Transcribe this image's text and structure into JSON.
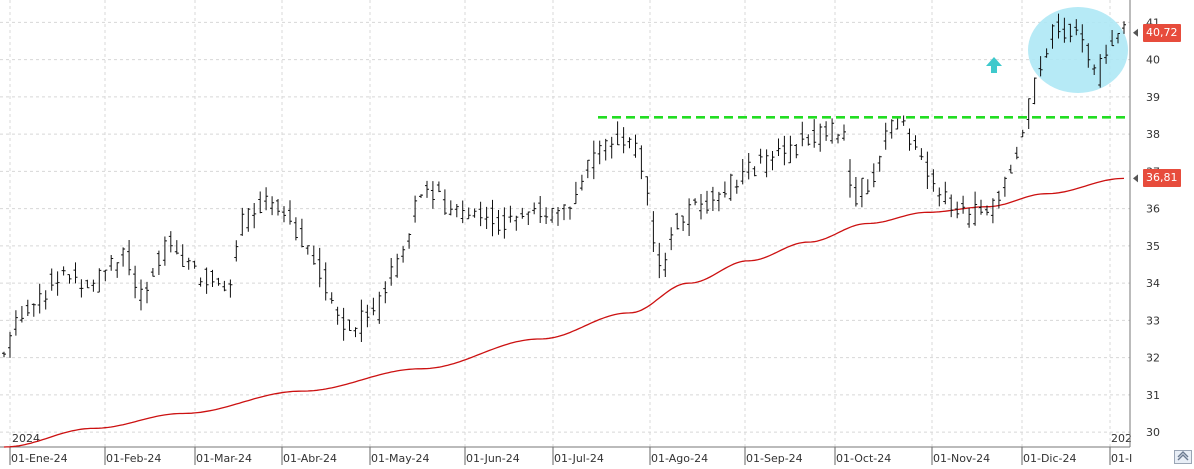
{
  "chart_data": {
    "type": "ohlc",
    "title": "",
    "xlabel": "",
    "ylabel": "",
    "ylim": [
      29.6,
      41.6
    ],
    "y_ticks": [
      30,
      31,
      32,
      33,
      34,
      35,
      36,
      37,
      38,
      39,
      40,
      41
    ],
    "y_axis_side": "right",
    "grid": true,
    "year_labels": [
      "2024",
      "202"
    ],
    "x_tick_labels": [
      "01-Ene-24",
      "01-Feb-24",
      "01-Mar-24",
      "01-Abr-24",
      "01-May-24",
      "01-Jun-24",
      "01-Jul-24",
      "01-Ago-24",
      "01-Sep-24",
      "01-Oct-24",
      "01-Nov-24",
      "01-Dic-24",
      "01-I"
    ],
    "last_price": 40.72,
    "last_price_label": "40,72",
    "moving_average_last": 36.81,
    "moving_average_label": "36,81",
    "resistance_level": 38.45,
    "price_anchors": [
      {
        "day": 0,
        "close": 32.1
      },
      {
        "day": 5,
        "close": 33.2
      },
      {
        "day": 10,
        "close": 33.5
      },
      {
        "day": 20,
        "close": 34.3
      },
      {
        "day": 30,
        "close": 34.0
      },
      {
        "day": 40,
        "close": 34.9
      },
      {
        "day": 45,
        "close": 33.6
      },
      {
        "day": 55,
        "close": 35.1
      },
      {
        "day": 65,
        "close": 34.2
      },
      {
        "day": 75,
        "close": 33.8
      },
      {
        "day": 80,
        "close": 35.8
      },
      {
        "day": 90,
        "close": 36.4
      },
      {
        "day": 100,
        "close": 35.2
      },
      {
        "day": 110,
        "close": 33.6
      },
      {
        "day": 115,
        "close": 32.8
      },
      {
        "day": 125,
        "close": 33.2
      },
      {
        "day": 135,
        "close": 35.3
      },
      {
        "day": 140,
        "close": 36.5
      },
      {
        "day": 150,
        "close": 36.0
      },
      {
        "day": 160,
        "close": 35.8
      },
      {
        "day": 170,
        "close": 35.6
      },
      {
        "day": 180,
        "close": 35.9
      },
      {
        "day": 190,
        "close": 36.0
      },
      {
        "day": 197,
        "close": 37.3
      },
      {
        "day": 205,
        "close": 37.8
      },
      {
        "day": 210,
        "close": 38.1
      },
      {
        "day": 215,
        "close": 36.7
      },
      {
        "day": 220,
        "close": 34.3
      },
      {
        "day": 225,
        "close": 35.6
      },
      {
        "day": 235,
        "close": 36.1
      },
      {
        "day": 245,
        "close": 36.7
      },
      {
        "day": 255,
        "close": 37.3
      },
      {
        "day": 265,
        "close": 37.6
      },
      {
        "day": 275,
        "close": 38.2
      },
      {
        "day": 282,
        "close": 37.8
      },
      {
        "day": 285,
        "close": 36.3
      },
      {
        "day": 292,
        "close": 36.9
      },
      {
        "day": 298,
        "close": 38.4
      },
      {
        "day": 305,
        "close": 37.9
      },
      {
        "day": 310,
        "close": 36.9
      },
      {
        "day": 318,
        "close": 36.0
      },
      {
        "day": 325,
        "close": 35.8
      },
      {
        "day": 332,
        "close": 36.2
      },
      {
        "day": 338,
        "close": 37.0
      },
      {
        "day": 345,
        "close": 39.0
      },
      {
        "day": 352,
        "close": 40.7
      },
      {
        "day": 358,
        "close": 40.8
      },
      {
        "day": 362,
        "close": 40.5
      },
      {
        "day": 367,
        "close": 39.6
      },
      {
        "day": 372,
        "close": 40.6
      },
      {
        "day": 376,
        "close": 40.72
      }
    ],
    "moving_average_anchors": [
      {
        "day": 0,
        "value": 29.6
      },
      {
        "day": 30,
        "value": 30.1
      },
      {
        "day": 60,
        "value": 30.5
      },
      {
        "day": 100,
        "value": 31.1
      },
      {
        "day": 140,
        "value": 31.7
      },
      {
        "day": 180,
        "value": 32.5
      },
      {
        "day": 210,
        "value": 33.2
      },
      {
        "day": 230,
        "value": 34.0
      },
      {
        "day": 250,
        "value": 34.6
      },
      {
        "day": 270,
        "value": 35.1
      },
      {
        "day": 290,
        "value": 35.6
      },
      {
        "day": 310,
        "value": 35.9
      },
      {
        "day": 330,
        "value": 36.05
      },
      {
        "day": 350,
        "value": 36.4
      },
      {
        "day": 376,
        "value": 36.81
      }
    ],
    "colors": {
      "bars": "#111111",
      "moving_average": "#cc1111",
      "resistance": "#22dd22",
      "highlight": "#aee8f5",
      "arrow": "#3ec9cc",
      "price_tag": "#e74c3c",
      "grid": "#d8d8d8",
      "axis_text": "#333333"
    },
    "annotations": [
      "up-arrow",
      "highlight-ellipse-top-right"
    ]
  }
}
